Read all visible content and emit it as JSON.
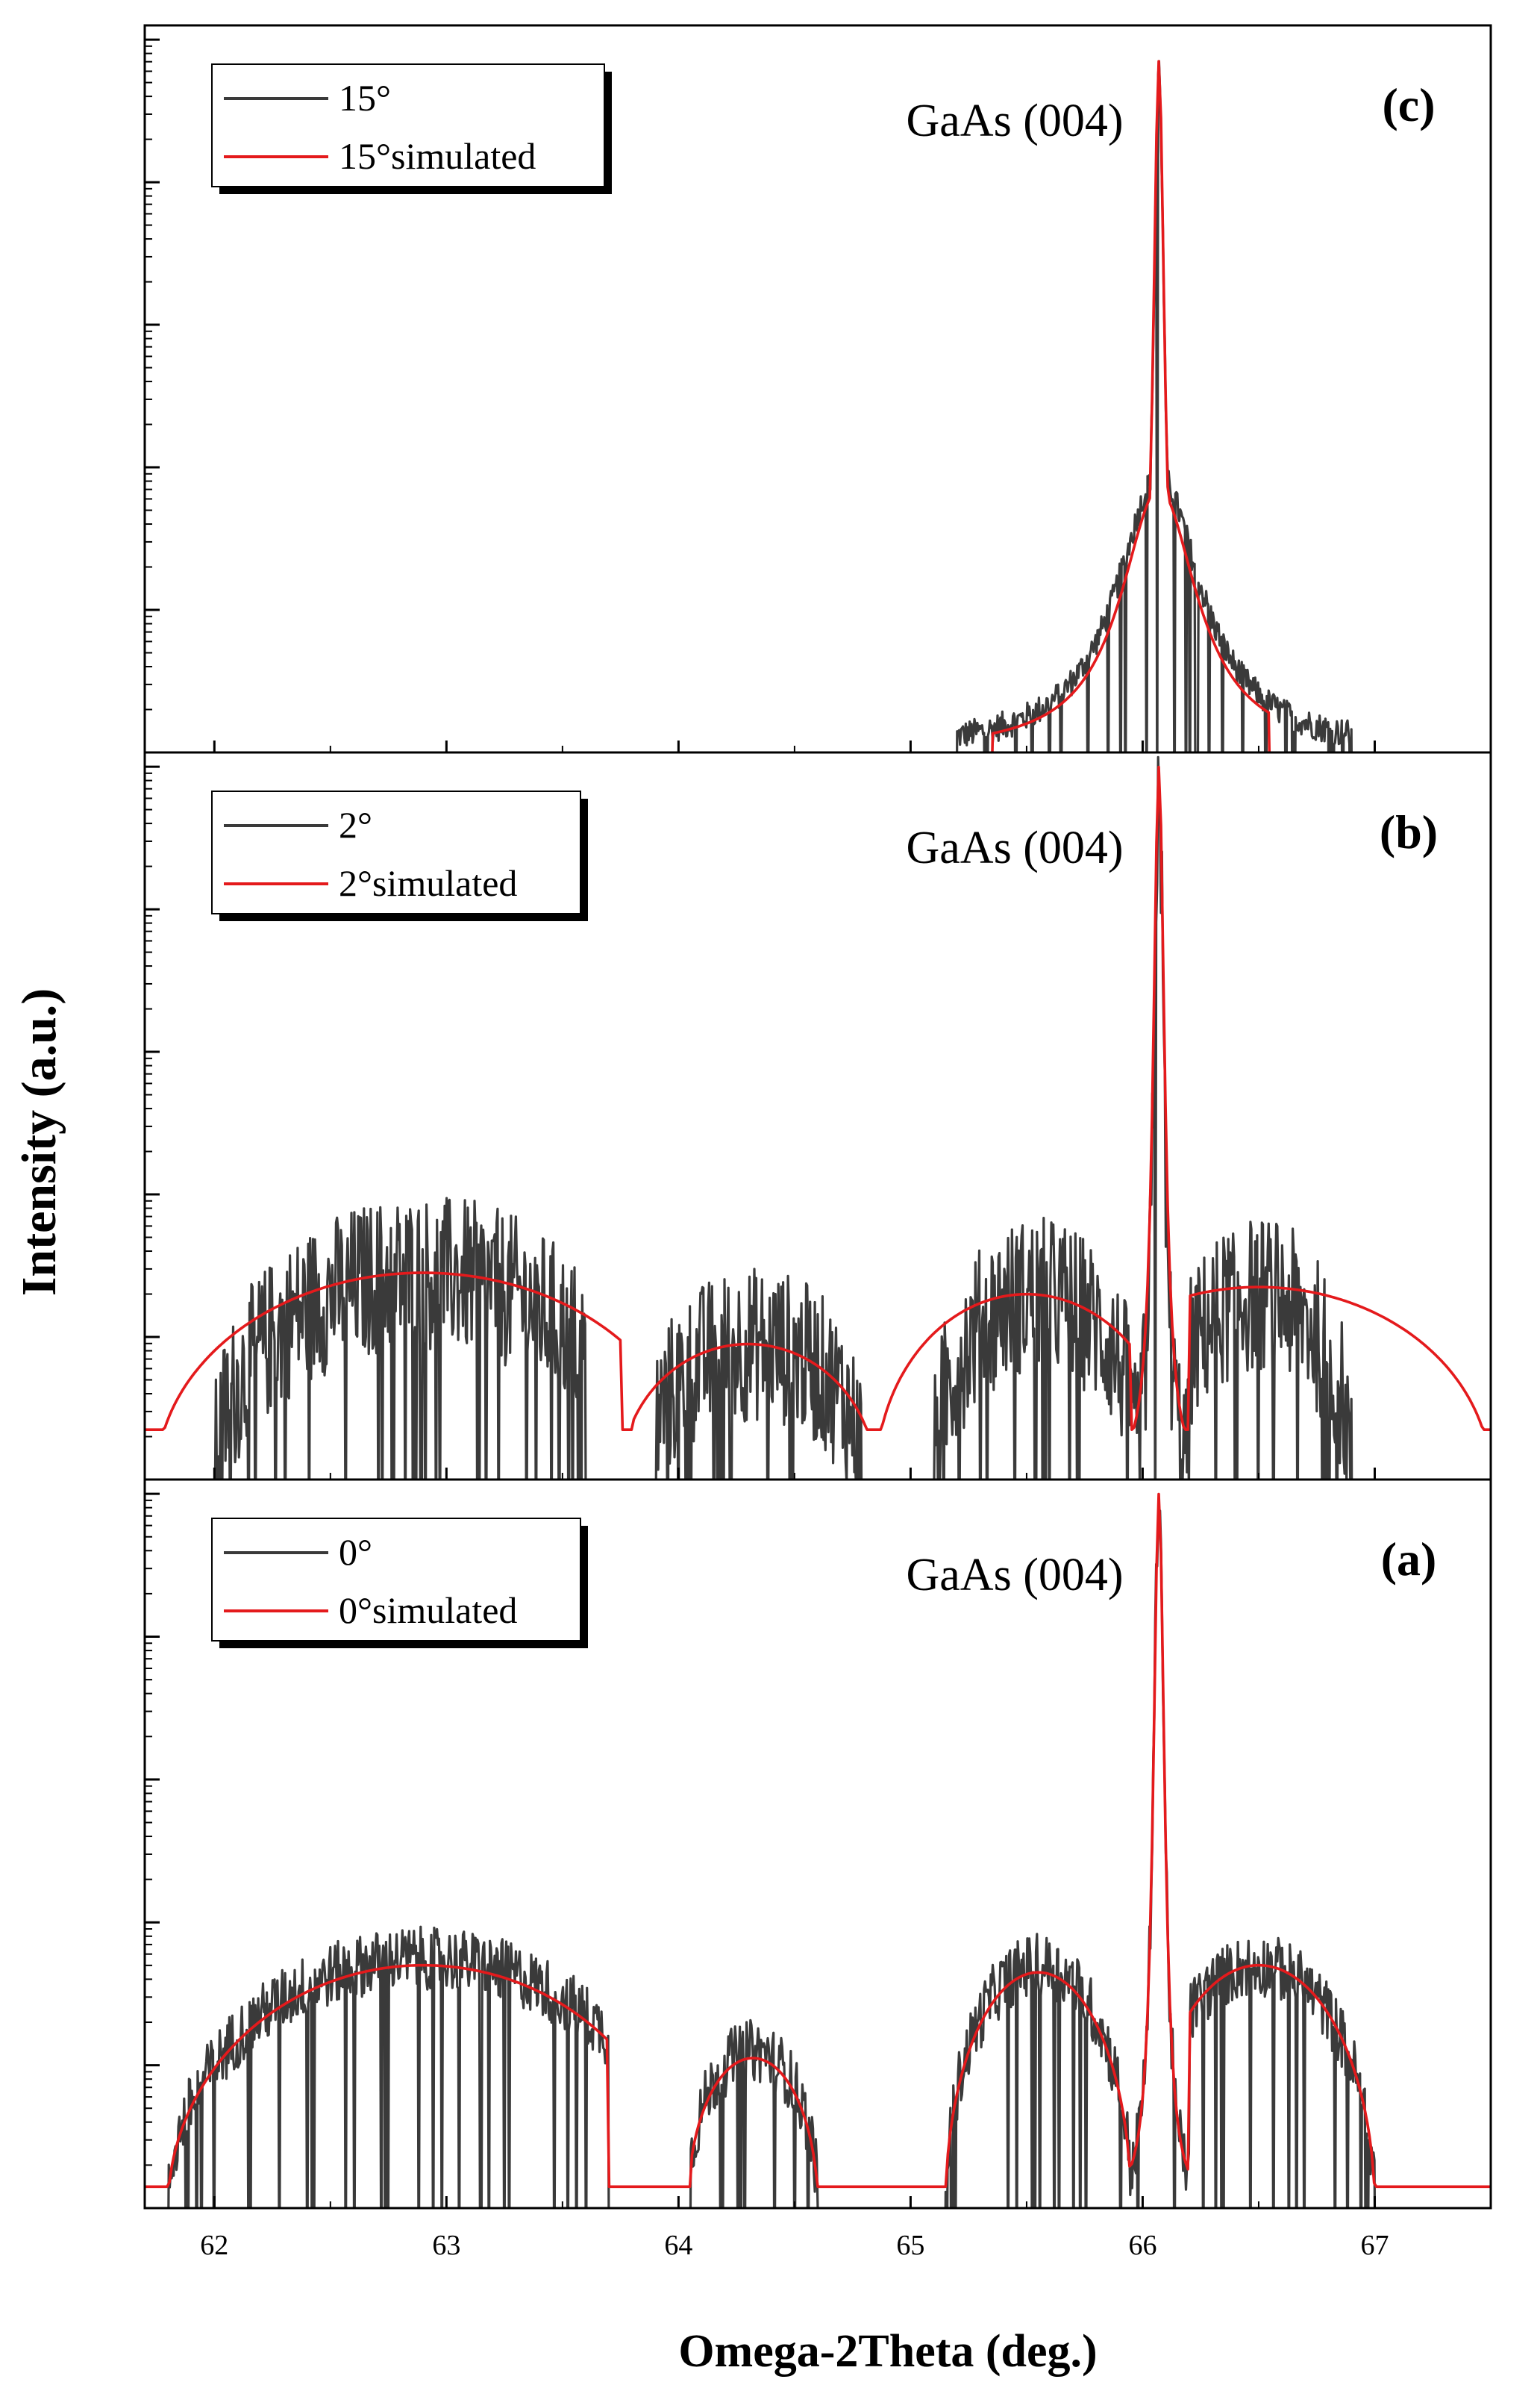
{
  "figure": {
    "xlabel": "Omega-2Theta (deg.)",
    "ylabel": "Intensity (a.u.)"
  },
  "chart_data": [
    {
      "type": "line",
      "panel_label": "(c)",
      "annotation": "GaAs (004)",
      "legend": [
        "15°",
        "15°simulated"
      ],
      "xlim": [
        61.7,
        67.5
      ],
      "xticks": [
        62,
        63,
        64,
        65,
        66,
        67
      ],
      "yscale": "log",
      "ylim": [
        0,
        5.1
      ],
      "decades": 5,
      "series": [
        {
          "name": "15°",
          "kind": "measured",
          "color": "#3a3a3a",
          "noise_level": 0.1,
          "peak": {
            "center": 66.07,
            "height": 4.8,
            "width": 0.03
          },
          "shoulder": {
            "center": 66.07,
            "height": 1.95,
            "width": 0.22
          },
          "floor": 0,
          "active_range": [
            65.2,
            66.9
          ],
          "outside_floor": -1
        },
        {
          "name": "15°simulated",
          "kind": "simulated",
          "color": "#e41a1c",
          "peak": {
            "center": 66.07,
            "height": 4.85,
            "width": 0.03
          },
          "shoulder": {
            "center": 66.07,
            "height": 1.85,
            "width": 0.2
          },
          "floor": 0,
          "active_range": [
            65.35,
            66.55
          ]
        }
      ]
    },
    {
      "type": "line",
      "panel_label": "(b)",
      "annotation": "GaAs (004)",
      "legend": [
        "2°",
        "2°simulated"
      ],
      "xlim": [
        61.7,
        67.5
      ],
      "xticks": [
        62,
        63,
        64,
        65,
        66,
        67
      ],
      "yscale": "log",
      "ylim": [
        0,
        5.1
      ],
      "decades": 5,
      "series": [
        {
          "name": "2°",
          "kind": "measured",
          "color": "#3a3a3a",
          "noise_level": 0.55,
          "peak": {
            "center": 66.07,
            "height": 5.0,
            "width": 0.025
          },
          "humps": [
            {
              "x": [
                62.0,
                63.6
              ],
              "center": 62.9,
              "height": 1.45
            },
            {
              "x": [
                63.9,
                64.8
              ],
              "center": 64.33,
              "height": 0.95
            },
            {
              "x": [
                65.1,
                65.95
              ],
              "center": 65.55,
              "height": 1.3
            },
            {
              "x": [
                66.2,
                66.9
              ],
              "center": 66.5,
              "height": 1.3
            }
          ]
        },
        {
          "name": "2°simulated",
          "kind": "simulated",
          "color": "#e41a1c",
          "peak": {
            "center": 66.07,
            "height": 5.0,
            "width": 0.03
          },
          "humps": [
            {
              "x": [
                61.75,
                63.75
              ],
              "center": 62.9,
              "height": 1.45
            },
            {
              "x": [
                63.8,
                64.85
              ],
              "center": 64.3,
              "height": 0.95
            },
            {
              "x": [
                64.85,
                65.95
              ],
              "center": 65.5,
              "height": 1.3
            },
            {
              "x": [
                66.2,
                67.5
              ],
              "center": 66.5,
              "height": 1.35
            }
          ],
          "floor_level": 0.35
        }
      ]
    },
    {
      "type": "line",
      "panel_label": "(a)",
      "annotation": "GaAs (004)",
      "legend": [
        "0°",
        "0°simulated"
      ],
      "xlim": [
        61.7,
        67.5
      ],
      "xticks": [
        62,
        63,
        64,
        65,
        66,
        67
      ],
      "yscale": "log",
      "ylim": [
        0,
        5.1
      ],
      "decades": 5,
      "series": [
        {
          "name": "0°",
          "kind": "measured",
          "color": "#3a3a3a",
          "noise_level": 0.22,
          "peak": {
            "center": 66.07,
            "height": 5.0,
            "width": 0.03
          },
          "humps": [
            {
              "x": [
                61.8,
                63.7
              ],
              "center": 62.9,
              "height": 1.75
            },
            {
              "x": [
                64.05,
                64.6
              ],
              "center": 64.32,
              "height": 1.1
            },
            {
              "x": [
                65.15,
                65.95
              ],
              "center": 65.55,
              "height": 1.7
            },
            {
              "x": [
                66.2,
                67.0
              ],
              "center": 66.5,
              "height": 1.7
            }
          ]
        },
        {
          "name": "0°simulated",
          "kind": "simulated",
          "color": "#e41a1c",
          "peak": {
            "center": 66.07,
            "height": 5.0,
            "width": 0.03
          },
          "humps": [
            {
              "x": [
                61.8,
                63.7
              ],
              "center": 62.9,
              "height": 1.7
            },
            {
              "x": [
                64.05,
                64.6
              ],
              "center": 64.32,
              "height": 1.05
            },
            {
              "x": [
                65.15,
                65.95
              ],
              "center": 65.55,
              "height": 1.65
            },
            {
              "x": [
                66.2,
                67.0
              ],
              "center": 66.5,
              "height": 1.7
            }
          ],
          "floor_level": 0.15
        }
      ]
    }
  ]
}
